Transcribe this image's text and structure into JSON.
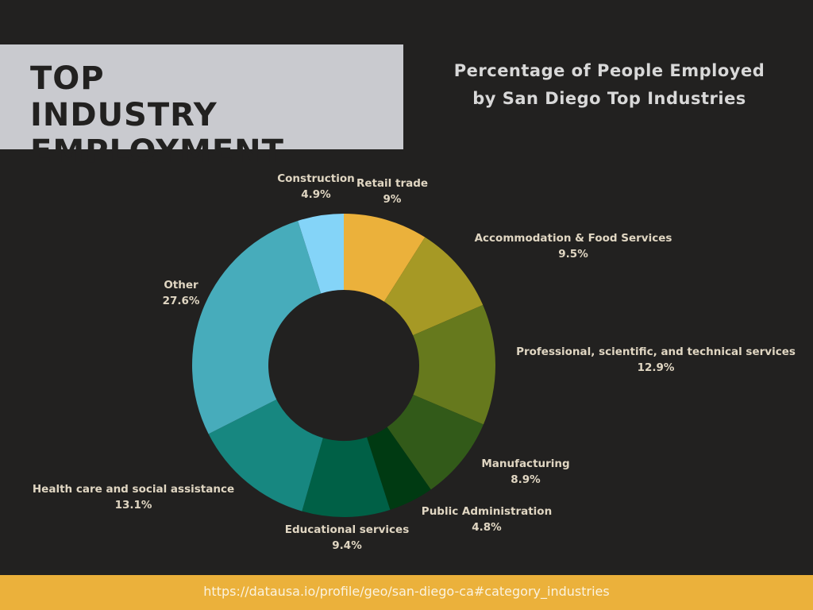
{
  "header": {
    "title": "TOP INDUSTRY EMPLOYMENT",
    "subtitle": "Percentage of People Employed by San Diego Top Industries"
  },
  "chart_data": {
    "type": "pie",
    "donut": true,
    "title": "Percentage of People Employed by San Diego Top Industries",
    "categories": [
      "Retail trade",
      "Accommodation & Food Services",
      "Professional, scientific, and technical services",
      "Manufacturing",
      "Public Administration",
      "Educational services",
      "Health care and social assistance",
      "Other",
      "Construction"
    ],
    "values": [
      9,
      9.5,
      12.9,
      8.9,
      4.8,
      9.4,
      13.1,
      27.6,
      4.9
    ],
    "value_labels": [
      "9%",
      "9.5%",
      "12.9%",
      "8.9%",
      "4.8%",
      "9.4%",
      "13.1%",
      "27.6%",
      "4.9%"
    ],
    "colors": [
      "#ebb13b",
      "#a69925",
      "#66791d",
      "#325a19",
      "#003a12",
      "#006046",
      "#178780",
      "#47acbb",
      "#84d4f8"
    ]
  },
  "footer": {
    "url": "https://datausa.io/profile/geo/san-diego-ca#category_industries"
  }
}
